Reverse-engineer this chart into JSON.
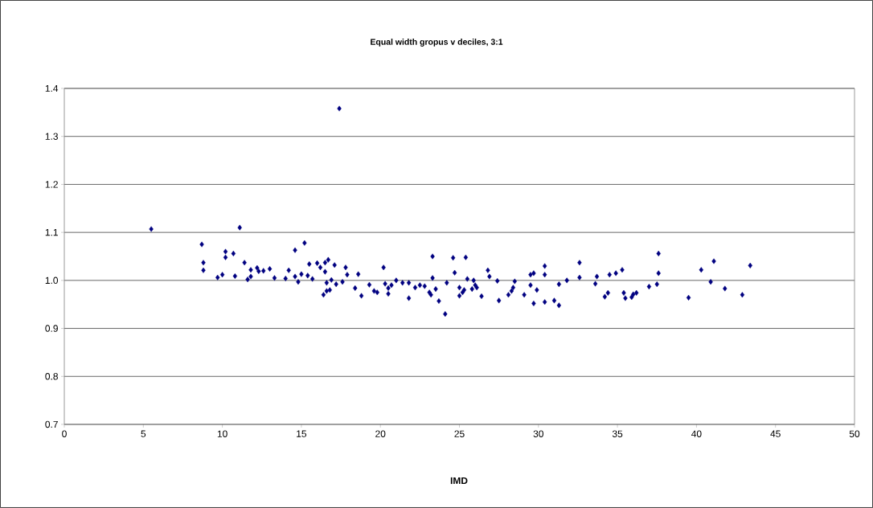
{
  "chart_data": {
    "type": "scatter",
    "title": "Equal width gropus v deciles, 3:1",
    "xlabel": "IMD",
    "color": "#000080",
    "marker": "diamond",
    "grid": "y",
    "xlim": [
      0,
      50
    ],
    "xticks": [
      0,
      5,
      10,
      15,
      20,
      25,
      30,
      35,
      40,
      45,
      50
    ],
    "ylim": [
      0.7,
      1.4
    ],
    "yticks": [
      {
        "value": 0.7,
        "label": "0.7"
      },
      {
        "value": 0.8,
        "label": "0.8"
      },
      {
        "value": 0.9,
        "label": "0.9"
      },
      {
        "value": 1.0,
        "label": "1.0"
      },
      {
        "value": 1.1,
        "label": "1.1"
      },
      {
        "value": 1.2,
        "label": "1.2"
      },
      {
        "value": 1.3,
        "label": "1.3"
      },
      {
        "value": 1.4,
        "label": "1.4"
      }
    ],
    "x": [
      5.5,
      8.7,
      8.8,
      8.8,
      9.7,
      10.0,
      10.2,
      10.2,
      10.7,
      10.8,
      11.1,
      11.4,
      11.6,
      11.8,
      11.8,
      12.2,
      12.3,
      12.6,
      13.0,
      13.3,
      14.0,
      14.2,
      14.6,
      14.6,
      14.8,
      15.0,
      15.2,
      15.4,
      15.5,
      15.7,
      16.0,
      16.2,
      16.4,
      16.5,
      16.5,
      16.6,
      16.6,
      16.7,
      16.8,
      16.9,
      17.1,
      17.2,
      17.4,
      17.6,
      17.8,
      17.9,
      18.4,
      18.6,
      18.8,
      19.3,
      19.6,
      19.8,
      20.2,
      20.3,
      20.5,
      20.5,
      20.7,
      21.0,
      21.4,
      21.8,
      21.8,
      22.2,
      22.5,
      22.8,
      23.1,
      23.2,
      23.3,
      23.3,
      23.5,
      23.7,
      24.1,
      24.2,
      24.6,
      24.7,
      25.0,
      25.0,
      25.2,
      25.3,
      25.4,
      25.5,
      25.8,
      25.9,
      26.0,
      26.1,
      26.4,
      26.8,
      26.9,
      27.4,
      27.5,
      28.1,
      28.3,
      28.4,
      28.5,
      29.1,
      29.5,
      29.5,
      29.7,
      29.7,
      29.9,
      30.4,
      30.4,
      30.4,
      31.0,
      31.3,
      31.3,
      31.8,
      32.6,
      32.6,
      33.6,
      33.7,
      34.2,
      34.4,
      34.5,
      34.9,
      35.3,
      35.4,
      35.5,
      35.9,
      36.0,
      36.2,
      37.0,
      37.5,
      37.6,
      37.6,
      39.5,
      40.3,
      40.9,
      41.1,
      41.8,
      42.9,
      43.4
    ],
    "values": [
      1.107,
      1.075,
      1.037,
      1.021,
      1.006,
      1.012,
      1.06,
      1.048,
      1.056,
      1.009,
      1.11,
      1.037,
      1.002,
      1.008,
      1.022,
      1.026,
      1.019,
      1.02,
      1.024,
      1.005,
      1.004,
      1.021,
      1.008,
      1.063,
      0.997,
      1.013,
      1.078,
      1.01,
      1.034,
      1.003,
      1.036,
      1.027,
      0.97,
      1.037,
      1.018,
      0.995,
      0.978,
      1.043,
      0.98,
      1.001,
      1.032,
      0.992,
      1.358,
      0.997,
      1.027,
      1.012,
      0.984,
      1.013,
      0.968,
      0.991,
      0.978,
      0.975,
      1.027,
      0.993,
      0.984,
      0.972,
      0.99,
      1.0,
      0.995,
      0.995,
      0.963,
      0.985,
      0.99,
      0.988,
      0.975,
      0.97,
      1.05,
      1.005,
      0.982,
      0.957,
      0.93,
      0.995,
      1.047,
      1.016,
      0.985,
      0.968,
      0.975,
      0.98,
      1.048,
      1.003,
      0.982,
      1.0,
      0.99,
      0.985,
      0.967,
      1.021,
      1.008,
      0.999,
      0.958,
      0.97,
      0.978,
      0.985,
      0.998,
      0.97,
      1.012,
      0.99,
      0.952,
      1.015,
      0.98,
      1.03,
      1.012,
      0.955,
      0.958,
      0.948,
      0.992,
      1.0,
      1.037,
      1.006,
      0.993,
      1.008,
      0.966,
      0.974,
      1.012,
      1.015,
      1.022,
      0.974,
      0.963,
      0.965,
      0.971,
      0.974,
      0.987,
      0.992,
      1.015,
      1.056,
      0.964,
      1.022,
      0.997,
      1.04,
      0.983,
      0.97,
      1.031
    ]
  }
}
